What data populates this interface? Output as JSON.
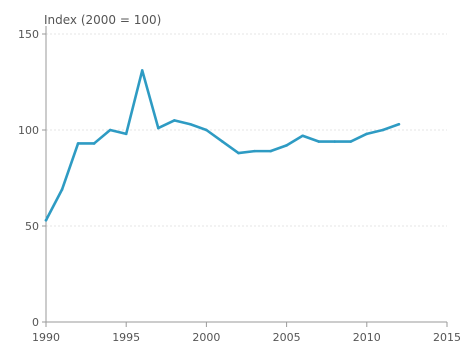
{
  "chart_data": {
    "type": "line",
    "title": "",
    "xlabel": "",
    "ylabel": "Index (2000 = 100)",
    "xlim": [
      1990,
      2015
    ],
    "ylim": [
      0,
      150
    ],
    "x_ticks": [
      1990,
      1995,
      2000,
      2005,
      2010,
      2015
    ],
    "y_ticks": [
      0,
      50,
      100,
      150
    ],
    "grid": true,
    "line_color": "#2e9bc3",
    "x": [
      1990,
      1991,
      1992,
      1993,
      1994,
      1995,
      1996,
      1997,
      1998,
      1999,
      2000,
      2001,
      2002,
      2003,
      2004,
      2005,
      2006,
      2007,
      2008,
      2009,
      2010,
      2011,
      2012
    ],
    "series": [
      {
        "values": [
          53,
          69,
          93,
          93,
          100,
          98,
          131,
          101,
          105,
          103,
          100,
          94,
          88,
          89,
          89,
          92,
          97,
          94,
          94,
          94,
          98,
          100,
          103
        ]
      }
    ]
  }
}
